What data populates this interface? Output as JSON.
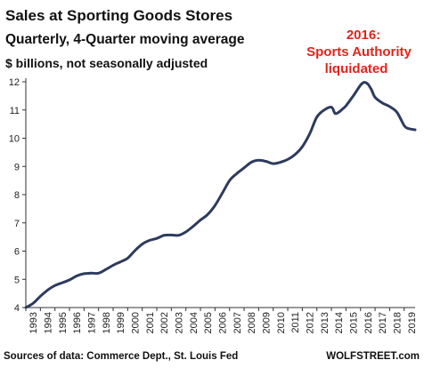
{
  "chart_data": {
    "type": "line",
    "title": "Sales at Sporting  Goods Stores",
    "subtitle": "Quarterly, 4-Quarter moving average",
    "ylabel": "$ billions, not seasonally adjusted",
    "annotation": [
      "2016:",
      "Sports Authority",
      "liquidated"
    ],
    "source": "Sources of data: Commerce Dept., St. Louis Fed",
    "watermark": "WOLFSTREET.com",
    "xlim": [
      1993,
      2019.75
    ],
    "ylim": [
      4,
      12
    ],
    "y_ticks": [
      4,
      5,
      6,
      7,
      8,
      9,
      10,
      11,
      12
    ],
    "x_tick_labels": [
      "1993",
      "1994",
      "1995",
      "1996",
      "1997",
      "1998",
      "1999",
      "2000",
      "2001",
      "2002",
      "2003",
      "2004",
      "2005",
      "2006",
      "2007",
      "2008",
      "2009",
      "2010",
      "2011",
      "2012",
      "2013",
      "2014",
      "2015",
      "2016",
      "2017",
      "2018",
      "2019"
    ],
    "grid": false,
    "colors": {
      "line": "#2d3b5e",
      "annotation": "#e0241b",
      "axis": "#333333"
    },
    "series": [
      {
        "x": [
          1993.0,
          1993.5,
          1994.0,
          1994.5,
          1995.0,
          1995.5,
          1996.0,
          1996.5,
          1997.0,
          1997.5,
          1998.0,
          1998.5,
          1999.0,
          1999.5,
          2000.0,
          2000.5,
          2001.0,
          2001.5,
          2002.0,
          2002.5,
          2003.0,
          2003.5,
          2004.0,
          2004.5,
          2005.0,
          2005.5,
          2006.0,
          2006.5,
          2007.0,
          2007.5,
          2008.0,
          2008.5,
          2009.0,
          2009.5,
          2010.0,
          2010.5,
          2011.0,
          2011.5,
          2012.0,
          2012.5,
          2013.0,
          2013.5,
          2014.0,
          2014.25,
          2014.5,
          2014.75,
          2015.0,
          2015.5,
          2016.0,
          2016.25,
          2016.5,
          2016.75,
          2017.0,
          2017.5,
          2018.0,
          2018.5,
          2019.0,
          2019.25,
          2019.5,
          2019.75
        ],
        "values": [
          4.0,
          4.15,
          4.4,
          4.62,
          4.78,
          4.88,
          4.98,
          5.12,
          5.2,
          5.22,
          5.22,
          5.35,
          5.5,
          5.62,
          5.75,
          6.02,
          6.25,
          6.38,
          6.45,
          6.56,
          6.57,
          6.56,
          6.68,
          6.88,
          7.1,
          7.3,
          7.62,
          8.05,
          8.5,
          8.75,
          8.95,
          9.15,
          9.22,
          9.18,
          9.1,
          9.15,
          9.25,
          9.42,
          9.7,
          10.15,
          10.75,
          11.0,
          11.1,
          10.88,
          10.92,
          11.03,
          11.15,
          11.5,
          11.88,
          11.98,
          11.92,
          11.72,
          11.45,
          11.25,
          11.12,
          10.92,
          10.45,
          10.35,
          10.32,
          10.3
        ]
      }
    ]
  }
}
